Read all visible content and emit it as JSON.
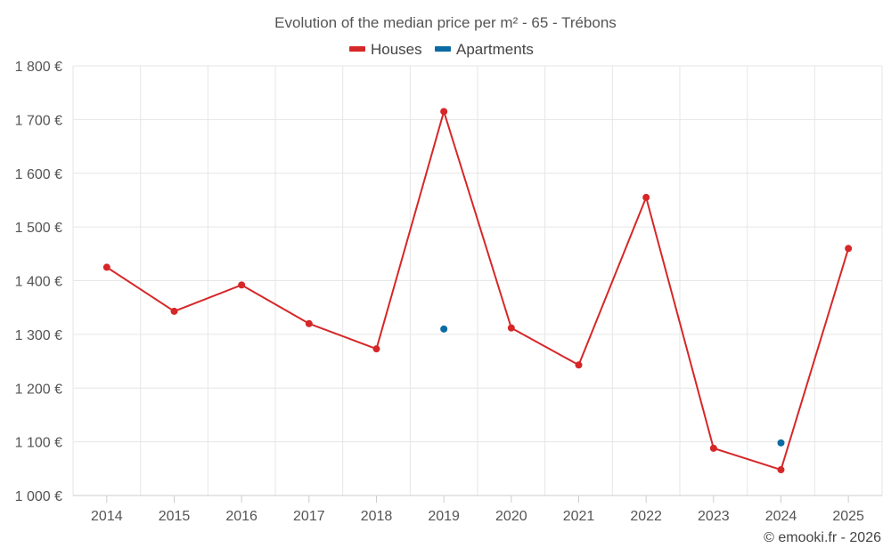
{
  "chart_data": {
    "type": "line",
    "title": "Evolution of the median price per m² - 65 - Trébons",
    "categories": [
      "2014",
      "2015",
      "2016",
      "2017",
      "2018",
      "2019",
      "2020",
      "2021",
      "2022",
      "2023",
      "2024",
      "2025"
    ],
    "series": [
      {
        "name": "Houses",
        "color": "#d62728",
        "values": [
          1425,
          1343,
          1392,
          1320,
          1273,
          1715,
          1312,
          1243,
          1555,
          1088,
          1048,
          1460
        ]
      },
      {
        "name": "Apartments",
        "color": "#0a6aa1",
        "values": [
          null,
          null,
          null,
          null,
          null,
          1310,
          null,
          null,
          null,
          null,
          1098,
          null
        ]
      }
    ],
    "ylim": [
      1000,
      1800
    ],
    "yticks": [
      1000,
      1100,
      1200,
      1300,
      1400,
      1500,
      1600,
      1700,
      1800
    ],
    "ytick_labels": [
      "1 000 €",
      "1 100 €",
      "1 200 €",
      "1 300 €",
      "1 400 €",
      "1 500 €",
      "1 600 €",
      "1 700 €",
      "1 800 €"
    ],
    "legend_position": "top-center",
    "grid": true
  },
  "credit": "© emooki.fr - 2026"
}
